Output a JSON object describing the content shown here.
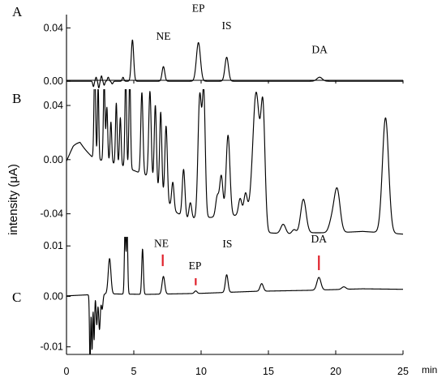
{
  "chart_data": {
    "type": "line",
    "ylabel": "intensity (μA)",
    "xunit": "min",
    "xlim": [
      0,
      25
    ],
    "xticks": [
      0,
      5,
      10,
      15,
      20,
      25
    ],
    "xticklabels": [
      "0",
      "5",
      "10",
      "15",
      "20",
      "25"
    ],
    "panels": [
      {
        "id": "A",
        "label": "A",
        "ylim": [
          -0.006,
          0.05
        ],
        "yticks": [
          0.0,
          0.04
        ],
        "yticklabels": [
          "0.00",
          "0.04"
        ],
        "annotations": [
          {
            "text": "NE",
            "x": 7.2,
            "y": 0.031
          },
          {
            "text": "EP",
            "x": 9.8,
            "y": 0.052
          },
          {
            "text": "IS",
            "x": 11.9,
            "y": 0.039
          },
          {
            "text": "DA",
            "x": 18.8,
            "y": 0.021
          }
        ],
        "baseline": 0.0,
        "peaks": [
          {
            "x": 2.0,
            "h": -0.004,
            "w": 0.05
          },
          {
            "x": 2.2,
            "h": 0.003,
            "w": 0.05
          },
          {
            "x": 2.4,
            "h": -0.005,
            "w": 0.05
          },
          {
            "x": 2.6,
            "h": 0.004,
            "w": 0.05
          },
          {
            "x": 2.8,
            "h": -0.003,
            "w": 0.05
          },
          {
            "x": 3.1,
            "h": 0.003,
            "w": 0.06
          },
          {
            "x": 3.4,
            "h": -0.002,
            "w": 0.06
          },
          {
            "x": 4.2,
            "h": 0.003,
            "w": 0.06
          },
          {
            "x": 4.9,
            "h": 0.031,
            "w": 0.09
          },
          {
            "x": 7.2,
            "h": 0.011,
            "w": 0.1
          },
          {
            "x": 9.8,
            "h": 0.029,
            "w": 0.15
          },
          {
            "x": 11.9,
            "h": 0.018,
            "w": 0.13
          },
          {
            "x": 18.8,
            "h": 0.003,
            "w": 0.2
          }
        ]
      },
      {
        "id": "B",
        "label": "B",
        "ylim": [
          -0.057,
          0.052
        ],
        "yticks": [
          0.04,
          0.0,
          -0.04
        ],
        "yticklabels": [
          "0.04",
          "0.00",
          "-0.04"
        ],
        "annotations": [],
        "baseline_points": [
          [
            0.0,
            -0.002
          ],
          [
            0.5,
            0.007
          ],
          [
            1.0,
            0.011
          ],
          [
            1.5,
            0.006
          ],
          [
            2.0,
            0.001
          ],
          [
            4.0,
            -0.004
          ],
          [
            6.0,
            -0.012
          ],
          [
            8.0,
            -0.038
          ],
          [
            9.0,
            -0.044
          ],
          [
            10.0,
            -0.043
          ],
          [
            12.0,
            -0.042
          ],
          [
            14.0,
            -0.039
          ],
          [
            15.0,
            -0.054
          ],
          [
            16.5,
            -0.055
          ],
          [
            18.0,
            -0.054
          ],
          [
            20.0,
            -0.054
          ],
          [
            22.0,
            -0.053
          ],
          [
            25.0,
            -0.055
          ]
        ],
        "peaks": [
          {
            "x": 0.6,
            "h": 0.003,
            "w": 0.4
          },
          {
            "x": 2.1,
            "h": 0.07,
            "w": 0.06
          },
          {
            "x": 2.35,
            "h": 0.055,
            "w": 0.05
          },
          {
            "x": 2.8,
            "h": 0.06,
            "w": 0.06
          },
          {
            "x": 3.0,
            "h": 0.04,
            "w": 0.06
          },
          {
            "x": 3.3,
            "h": 0.03,
            "w": 0.06
          },
          {
            "x": 3.7,
            "h": 0.045,
            "w": 0.06
          },
          {
            "x": 4.0,
            "h": 0.035,
            "w": 0.06
          },
          {
            "x": 4.4,
            "h": 0.07,
            "w": 0.06
          },
          {
            "x": 4.7,
            "h": 0.07,
            "w": 0.06
          },
          {
            "x": 5.6,
            "h": 0.06,
            "w": 0.08
          },
          {
            "x": 6.2,
            "h": 0.065,
            "w": 0.09
          },
          {
            "x": 6.6,
            "h": 0.06,
            "w": 0.08
          },
          {
            "x": 7.0,
            "h": 0.06,
            "w": 0.08
          },
          {
            "x": 7.4,
            "h": 0.055,
            "w": 0.09
          },
          {
            "x": 7.9,
            "h": 0.02,
            "w": 0.09
          },
          {
            "x": 8.7,
            "h": 0.035,
            "w": 0.1
          },
          {
            "x": 9.2,
            "h": 0.012,
            "w": 0.1
          },
          {
            "x": 9.9,
            "h": 0.09,
            "w": 0.13
          },
          {
            "x": 10.2,
            "h": 0.09,
            "w": 0.11
          },
          {
            "x": 11.2,
            "h": 0.015,
            "w": 0.12
          },
          {
            "x": 11.5,
            "h": 0.03,
            "w": 0.12
          },
          {
            "x": 12.0,
            "h": 0.06,
            "w": 0.14
          },
          {
            "x": 12.9,
            "h": 0.012,
            "w": 0.12
          },
          {
            "x": 13.3,
            "h": 0.015,
            "w": 0.12
          },
          {
            "x": 14.1,
            "h": 0.09,
            "w": 0.25
          },
          {
            "x": 14.6,
            "h": 0.08,
            "w": 0.15
          },
          {
            "x": 16.1,
            "h": 0.007,
            "w": 0.18
          },
          {
            "x": 16.9,
            "h": 0.003,
            "w": 0.15
          },
          {
            "x": 17.6,
            "h": 0.025,
            "w": 0.2
          },
          {
            "x": 19.7,
            "h": 0.008,
            "w": 0.2
          },
          {
            "x": 20.1,
            "h": 0.032,
            "w": 0.22
          },
          {
            "x": 23.7,
            "h": 0.085,
            "w": 0.23
          }
        ]
      },
      {
        "id": "C",
        "label": "C",
        "ylim": [
          -0.0115,
          0.0118
        ],
        "yticks": [
          0.01,
          0.0,
          -0.01
        ],
        "yticklabels": [
          "0.01",
          "0.00",
          "-0.01"
        ],
        "annotations": [
          {
            "text": "NE",
            "x": 7.05,
            "y": 0.0098
          },
          {
            "text": "EP",
            "x": 9.55,
            "y": 0.0054
          },
          {
            "text": "IS",
            "x": 11.95,
            "y": 0.0097
          },
          {
            "text": "DA",
            "x": 18.75,
            "y": 0.0107
          }
        ],
        "markers": [
          {
            "x": 7.15,
            "y_top": 0.0083,
            "y_bottom": 0.006
          },
          {
            "x": 9.6,
            "y_top": 0.0036,
            "y_bottom": 0.0022
          },
          {
            "x": 18.75,
            "y_top": 0.0081,
            "y_bottom": 0.0052
          }
        ],
        "baseline_points": [
          [
            0.0,
            0.0001
          ],
          [
            1.5,
            0.0003
          ],
          [
            3.0,
            0.0005
          ],
          [
            6.0,
            0.0004
          ],
          [
            8.0,
            0.0005
          ],
          [
            10.0,
            0.0006
          ],
          [
            12.0,
            0.0008
          ],
          [
            14.0,
            0.001
          ],
          [
            18.0,
            0.0012
          ],
          [
            22.0,
            0.0015
          ],
          [
            25.0,
            0.0014
          ]
        ],
        "peaks": [
          {
            "x": 1.75,
            "h": -0.014,
            "w": 0.04
          },
          {
            "x": 1.9,
            "h": -0.011,
            "w": 0.04
          },
          {
            "x": 2.05,
            "h": -0.009,
            "w": 0.04
          },
          {
            "x": 2.25,
            "h": -0.006,
            "w": 0.05
          },
          {
            "x": 2.45,
            "h": -0.007,
            "w": 0.06
          },
          {
            "x": 2.65,
            "h": -0.003,
            "w": 0.06
          },
          {
            "x": 3.2,
            "h": 0.007,
            "w": 0.1
          },
          {
            "x": 4.35,
            "h": 0.013,
            "w": 0.05
          },
          {
            "x": 4.5,
            "h": 0.013,
            "w": 0.05
          },
          {
            "x": 5.65,
            "h": 0.009,
            "w": 0.06
          },
          {
            "x": 7.2,
            "h": 0.0035,
            "w": 0.1
          },
          {
            "x": 9.6,
            "h": 0.0005,
            "w": 0.1
          },
          {
            "x": 11.9,
            "h": 0.0035,
            "w": 0.1
          },
          {
            "x": 14.5,
            "h": 0.0015,
            "w": 0.12
          },
          {
            "x": 18.75,
            "h": 0.0025,
            "w": 0.15
          },
          {
            "x": 20.6,
            "h": 0.0005,
            "w": 0.15
          }
        ]
      }
    ]
  }
}
